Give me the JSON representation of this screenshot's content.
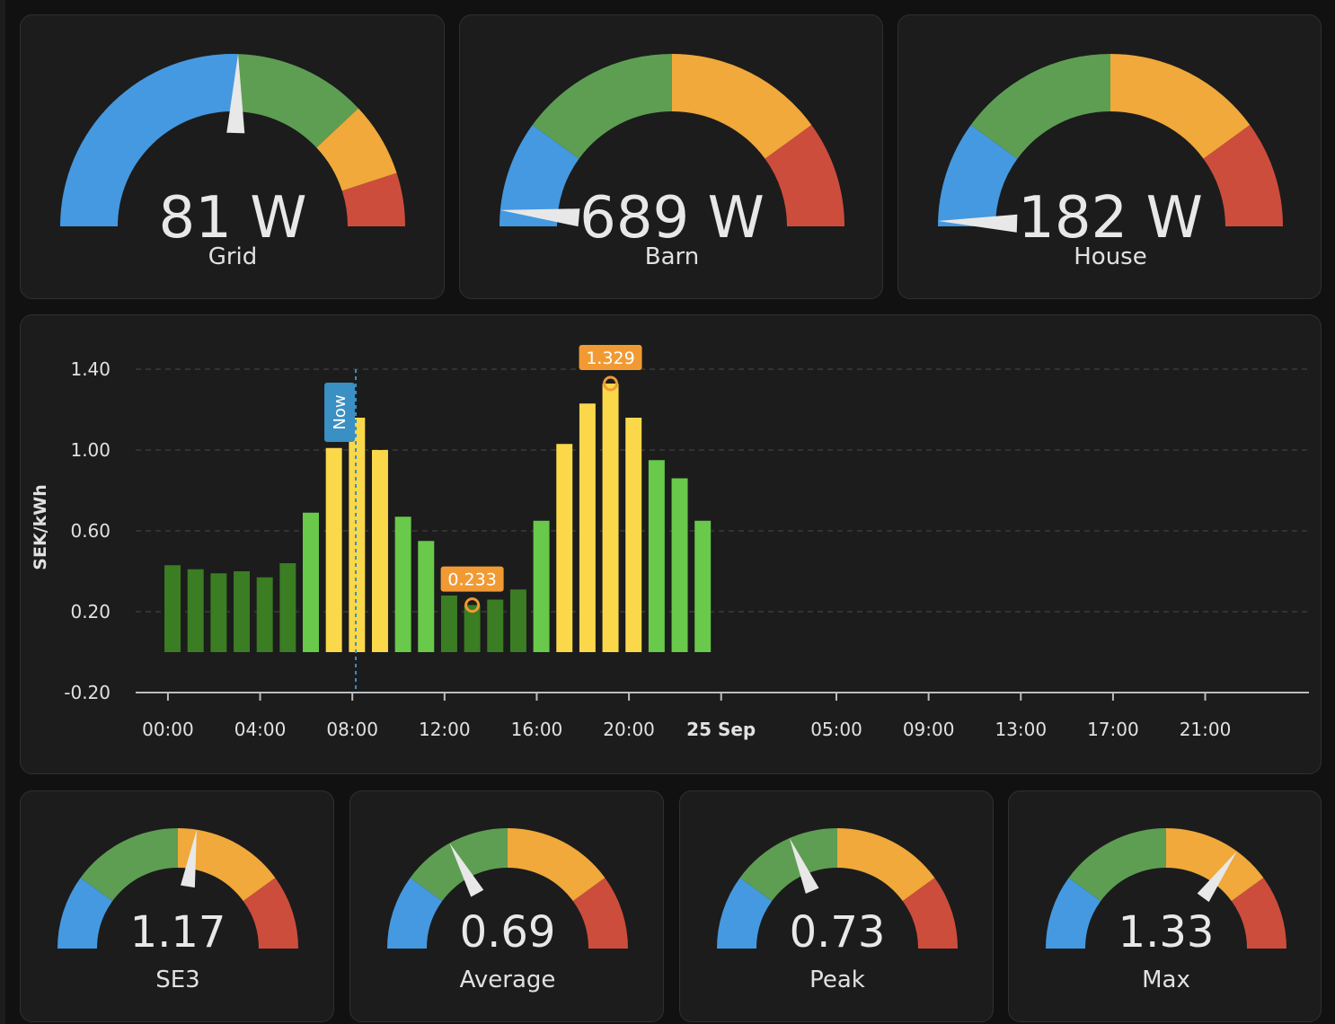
{
  "colors": {
    "blue": "#4599e0",
    "green": "#5d9e53",
    "orange": "#f0a93a",
    "red": "#cc4d3c",
    "needle": "#e8e8e8",
    "bar_dark_green": "#3a7d22",
    "bar_green": "#69c94a",
    "bar_yellow": "#fad84a",
    "marker_orange": "#f19a34",
    "now_blue": "#3a8fc3"
  },
  "power_gauges": [
    {
      "name": "Grid",
      "value_text": "81 W",
      "needle_fraction": 0.51,
      "segments": [
        0.51,
        0.25,
        0.14,
        0.1
      ]
    },
    {
      "name": "Barn",
      "value_text": "689 W",
      "needle_fraction": 0.03,
      "segments": [
        0.2,
        0.3,
        0.3,
        0.2
      ]
    },
    {
      "name": "House",
      "value_text": "182 W",
      "needle_fraction": 0.01,
      "segments": [
        0.2,
        0.3,
        0.3,
        0.2
      ]
    }
  ],
  "price_gauges": [
    {
      "name": "SE3",
      "value_text": "1.17",
      "needle_fraction": 0.55,
      "segments": [
        0.2,
        0.3,
        0.3,
        0.2
      ]
    },
    {
      "name": "Average",
      "value_text": "0.69",
      "needle_fraction": 0.34,
      "segments": [
        0.2,
        0.3,
        0.3,
        0.2
      ]
    },
    {
      "name": "Peak",
      "value_text": "0.73",
      "needle_fraction": 0.37,
      "segments": [
        0.2,
        0.3,
        0.3,
        0.2
      ]
    },
    {
      "name": "Max",
      "value_text": "1.33",
      "needle_fraction": 0.7,
      "segments": [
        0.2,
        0.3,
        0.3,
        0.2
      ]
    }
  ],
  "chart_data": {
    "type": "bar",
    "ylabel": "SEK/kWh",
    "ylim": [
      -0.2,
      1.4
    ],
    "yticks": [
      "1.40",
      "1.00",
      "0.60",
      "0.20",
      "-0.20"
    ],
    "ytick_values": [
      1.4,
      1.0,
      0.6,
      0.2,
      -0.2
    ],
    "xticks": [
      "00:00",
      "04:00",
      "08:00",
      "12:00",
      "16:00",
      "20:00",
      "25 Sep",
      "05:00",
      "09:00",
      "13:00",
      "17:00",
      "21:00"
    ],
    "xtick_hours": [
      0,
      4,
      8,
      12,
      16,
      20,
      24,
      29,
      33,
      37,
      41,
      45
    ],
    "x_range_hours": [
      -1.4,
      49.5
    ],
    "bar_start_hour": 0,
    "values": [
      0.43,
      0.41,
      0.39,
      0.4,
      0.37,
      0.44,
      0.69,
      1.01,
      1.16,
      1.0,
      0.67,
      0.55,
      0.28,
      0.233,
      0.26,
      0.31,
      0.65,
      1.03,
      1.23,
      1.329,
      1.16,
      0.95,
      0.86,
      0.65
    ],
    "levels": [
      "dark",
      "dark",
      "dark",
      "dark",
      "dark",
      "dark",
      "green",
      "yellow",
      "yellow",
      "yellow",
      "green",
      "green",
      "dark",
      "dark",
      "dark",
      "dark",
      "green",
      "yellow",
      "yellow",
      "yellow",
      "yellow",
      "green",
      "green",
      "green"
    ],
    "grid": true,
    "now_label": "Now",
    "now_hour": 8.15,
    "annotations": [
      {
        "label": "1.329",
        "hour_index": 19,
        "value": 1.329
      },
      {
        "label": "0.233",
        "hour_index": 13,
        "value": 0.233
      }
    ]
  }
}
